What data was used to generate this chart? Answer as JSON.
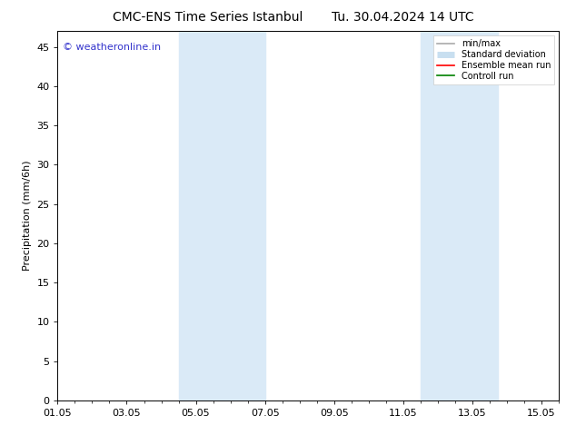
{
  "title": "CMC-ENS Time Series Istanbul",
  "title2": "Tu. 30.04.2024 14 UTC",
  "ylabel": "Precipitation (mm/6h)",
  "xlim_start": 0,
  "xlim_end": 14.5,
  "ylim": [
    0,
    47
  ],
  "yticks": [
    0,
    5,
    10,
    15,
    20,
    25,
    30,
    35,
    40,
    45
  ],
  "xtick_labels": [
    "01.05",
    "03.05",
    "05.05",
    "07.05",
    "09.05",
    "11.05",
    "13.05",
    "15.05"
  ],
  "xtick_positions": [
    0,
    2,
    4,
    6,
    8,
    10,
    12,
    14
  ],
  "background_color": "#ffffff",
  "plot_bg_color": "#ffffff",
  "shaded_regions": [
    {
      "x_start": 3.5,
      "x_end": 4.5,
      "color": "#daeaf7"
    },
    {
      "x_start": 4.5,
      "x_end": 6.0,
      "color": "#daeaf7"
    },
    {
      "x_start": 10.5,
      "x_end": 12.0,
      "color": "#daeaf7"
    },
    {
      "x_start": 12.0,
      "x_end": 12.75,
      "color": "#daeaf7"
    }
  ],
  "legend_items": [
    {
      "label": "min/max",
      "color": "#aaaaaa",
      "lw": 1.2,
      "ls": "-"
    },
    {
      "label": "Standard deviation",
      "color": "#c8dff0",
      "lw": 6,
      "ls": "-"
    },
    {
      "label": "Ensemble mean run",
      "color": "#ff0000",
      "lw": 1.2,
      "ls": "-"
    },
    {
      "label": "Controll run",
      "color": "#008000",
      "lw": 1.2,
      "ls": "-"
    }
  ],
  "watermark": "© weatheronline.in",
  "watermark_color": "#3333cc",
  "watermark_fontsize": 8,
  "title_fontsize": 10,
  "tick_fontsize": 8,
  "ylabel_fontsize": 8,
  "legend_fontsize": 7
}
